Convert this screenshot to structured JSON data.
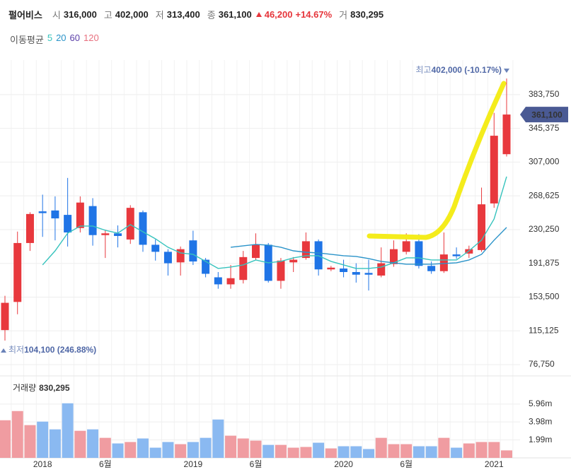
{
  "header": {
    "name": "펄어비스",
    "open_label": "시",
    "open": "316,000",
    "high_label": "고",
    "high": "402,000",
    "low_label": "저",
    "low": "313,400",
    "close_label": "종",
    "close": "361,100",
    "change": "46,200",
    "change_rate": "+14.67%",
    "volume_label": "거",
    "volume": "830,295"
  },
  "chart_data": {
    "type": "candlestick",
    "categories": [
      null,
      null,
      null,
      "2018",
      null,
      null,
      null,
      null,
      "6월",
      null,
      null,
      null,
      null,
      null,
      null,
      "2019",
      null,
      null,
      null,
      null,
      "6월",
      null,
      null,
      null,
      null,
      null,
      null,
      "2020",
      null,
      null,
      null,
      null,
      "6월",
      null,
      null,
      null,
      null,
      null,
      null,
      "2021",
      null
    ],
    "open": [
      116000,
      148000,
      215000,
      251000,
      252000,
      247000,
      232000,
      257000,
      224000,
      226000,
      219000,
      250000,
      213000,
      205000,
      193000,
      218000,
      196000,
      176000,
      168000,
      173000,
      198000,
      213000,
      172000,
      193000,
      198000,
      217000,
      185000,
      186000,
      182000,
      181000,
      178000,
      191000,
      205000,
      217000,
      189000,
      183000,
      202000,
      203000,
      207000,
      260000,
      316000
    ],
    "high": [
      155000,
      228000,
      250000,
      270000,
      268000,
      289000,
      268000,
      266000,
      230000,
      235000,
      258000,
      252000,
      219000,
      208000,
      211000,
      229000,
      198000,
      182000,
      190000,
      206000,
      226000,
      215000,
      198000,
      199000,
      227000,
      219000,
      189000,
      196000,
      192000,
      196000,
      210000,
      218000,
      226000,
      225000,
      194000,
      227000,
      210000,
      212000,
      278000,
      363000,
      402000
    ],
    "low": [
      104100,
      134000,
      206000,
      222000,
      218000,
      211000,
      227000,
      212000,
      198000,
      210000,
      214000,
      205000,
      195000,
      178000,
      178000,
      190000,
      176000,
      163000,
      163000,
      169000,
      196000,
      170000,
      163000,
      182000,
      196000,
      178000,
      183000,
      176000,
      170000,
      161000,
      176000,
      188000,
      202000,
      186000,
      180000,
      181000,
      197000,
      198000,
      205000,
      255000,
      313400
    ],
    "close": [
      147000,
      215000,
      248000,
      249000,
      243000,
      227000,
      261000,
      224000,
      226000,
      223000,
      255000,
      213000,
      205000,
      192000,
      208000,
      194000,
      180000,
      168000,
      175000,
      199000,
      213000,
      172000,
      195000,
      196000,
      217000,
      185000,
      187000,
      182000,
      179000,
      179000,
      192000,
      208000,
      217000,
      189000,
      183000,
      202000,
      200000,
      208000,
      259000,
      337000,
      361100
    ],
    "up_color": "#e8383d",
    "down_color": "#1f74e6",
    "ylim": [
      65500,
      415000
    ],
    "yticks": [
      {
        "value": 76750,
        "label": "76,750"
      },
      {
        "value": 115125,
        "label": "115,125"
      },
      {
        "value": 153500,
        "label": "153,500"
      },
      {
        "value": 191875,
        "label": "191,875"
      },
      {
        "value": 230250,
        "label": "230,250"
      },
      {
        "value": 268625,
        "label": "268,625"
      },
      {
        "value": 307000,
        "label": "307,000"
      },
      {
        "value": 345375,
        "label": "345,375"
      },
      {
        "value": 383750,
        "label": "383,750"
      }
    ],
    "grid": true,
    "moving_average": {
      "label": "이동평균",
      "series": [
        {
          "name": "5",
          "color": "#36c3bd",
          "values": [
            null,
            null,
            null,
            190100,
            206100,
            226200,
            234300,
            234300,
            229500,
            226200,
            235900,
            227800,
            219800,
            210200,
            203700,
            202100,
            194100,
            186100,
            187700,
            190100,
            195700,
            192500,
            194100,
            198100,
            200500,
            200500,
            194100,
            190100,
            186100,
            186100,
            187700,
            192500,
            198100,
            198100,
            195700,
            195700,
            195700,
            206100,
            218200,
            242300,
            290500
          ]
        },
        {
          "name": "20",
          "color": "#2a93c9",
          "values": [
            null,
            null,
            null,
            null,
            null,
            null,
            null,
            null,
            null,
            null,
            null,
            null,
            null,
            null,
            null,
            null,
            null,
            null,
            210200,
            211800,
            213400,
            212600,
            210200,
            206100,
            204500,
            203700,
            202100,
            200500,
            199700,
            197300,
            194100,
            192500,
            190900,
            190900,
            190900,
            191700,
            192500,
            195700,
            202100,
            218200,
            232700
          ]
        },
        {
          "name": "60",
          "color": "#5b3fa8"
        },
        {
          "name": "120",
          "color": "#e8707f"
        }
      ]
    },
    "volume": {
      "label": "거래량",
      "last": "830,295",
      "up_color": "#f09ca1",
      "down_color": "#8ab9f1",
      "values": [
        4170000,
        5190000,
        3630000,
        4020000,
        3160000,
        6050000,
        3000000,
        3160000,
        2220000,
        1600000,
        1760000,
        2150000,
        1130000,
        1760000,
        1520000,
        1760000,
        2220000,
        4250000,
        2460000,
        2150000,
        1910000,
        1440000,
        1440000,
        1130000,
        1210000,
        1680000,
        1050000,
        1290000,
        1290000,
        980000,
        2220000,
        1520000,
        1520000,
        1290000,
        1290000,
        2220000,
        1130000,
        1600000,
        1760000,
        1760000,
        830295
      ],
      "ylim": [
        0,
        8850000
      ],
      "yticks": [
        {
          "value": 1990000,
          "label": "1.99m"
        },
        {
          "value": 3980000,
          "label": "3.98m"
        },
        {
          "value": 5960000,
          "label": "5.96m"
        }
      ]
    },
    "annotations": {
      "high_label": "최고",
      "high_text": "402,000 (-10.17%)",
      "low_label": "최저",
      "low_text": "104,100 (246.88%)",
      "last_price": "361,100",
      "last_price_color": "#4a5a94"
    }
  }
}
